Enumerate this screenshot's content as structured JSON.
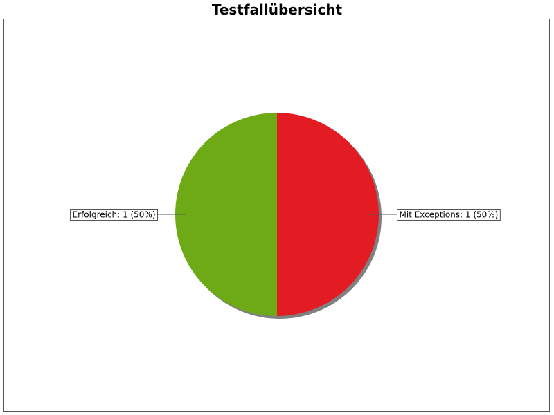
{
  "title": "Testfallübersicht",
  "chart_data": {
    "type": "pie",
    "title": "Testfallübersicht",
    "slices": [
      {
        "label": "Mit Exceptions: 1 (50%)",
        "name": "Mit Exceptions",
        "value": 1,
        "percent": 50,
        "color": "#E31B23"
      },
      {
        "label": "Erfolgreich: 1 (50%)",
        "name": "Erfolgreich",
        "value": 1,
        "percent": 50,
        "color": "#6DAA16"
      }
    ],
    "shadow_color": "#808080",
    "legend": "none"
  }
}
